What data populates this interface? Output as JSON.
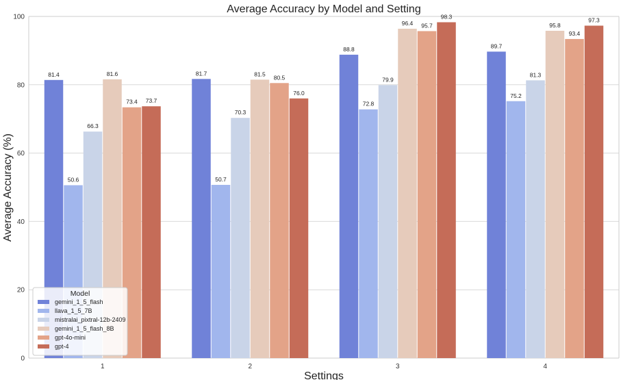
{
  "chart_data": {
    "type": "bar",
    "title": "Average Accuracy by Model and Setting",
    "xlabel": "Settings",
    "ylabel": "Average Accuracy (%)",
    "categories": [
      "1",
      "2",
      "3",
      "4"
    ],
    "ylim": [
      0,
      100
    ],
    "yticks": [
      0,
      20,
      40,
      60,
      80,
      100
    ],
    "grid": true,
    "legend": {
      "title": "Model",
      "placement": "bottom-left"
    },
    "series": [
      {
        "name": "gemini_1_5_flash",
        "color": "#7082d8",
        "values": [
          81.4,
          81.7,
          88.8,
          89.7
        ]
      },
      {
        "name": "llava_1_5_7B",
        "color": "#a1b6ed",
        "values": [
          50.6,
          50.7,
          72.8,
          75.2
        ]
      },
      {
        "name": "mistralai_pixtral-12b-2409",
        "color": "#c9d4e8",
        "values": [
          66.3,
          70.3,
          79.9,
          81.3
        ]
      },
      {
        "name": "gemini_1_5_flash_8B",
        "color": "#e6cbbb",
        "values": [
          81.6,
          81.5,
          96.4,
          95.8
        ]
      },
      {
        "name": "gpt-4o-mini",
        "color": "#e3a388",
        "values": [
          73.4,
          80.5,
          95.7,
          93.4
        ]
      },
      {
        "name": "gpt-4",
        "color": "#c56c58",
        "values": [
          73.7,
          76.0,
          98.3,
          97.3
        ]
      }
    ]
  }
}
